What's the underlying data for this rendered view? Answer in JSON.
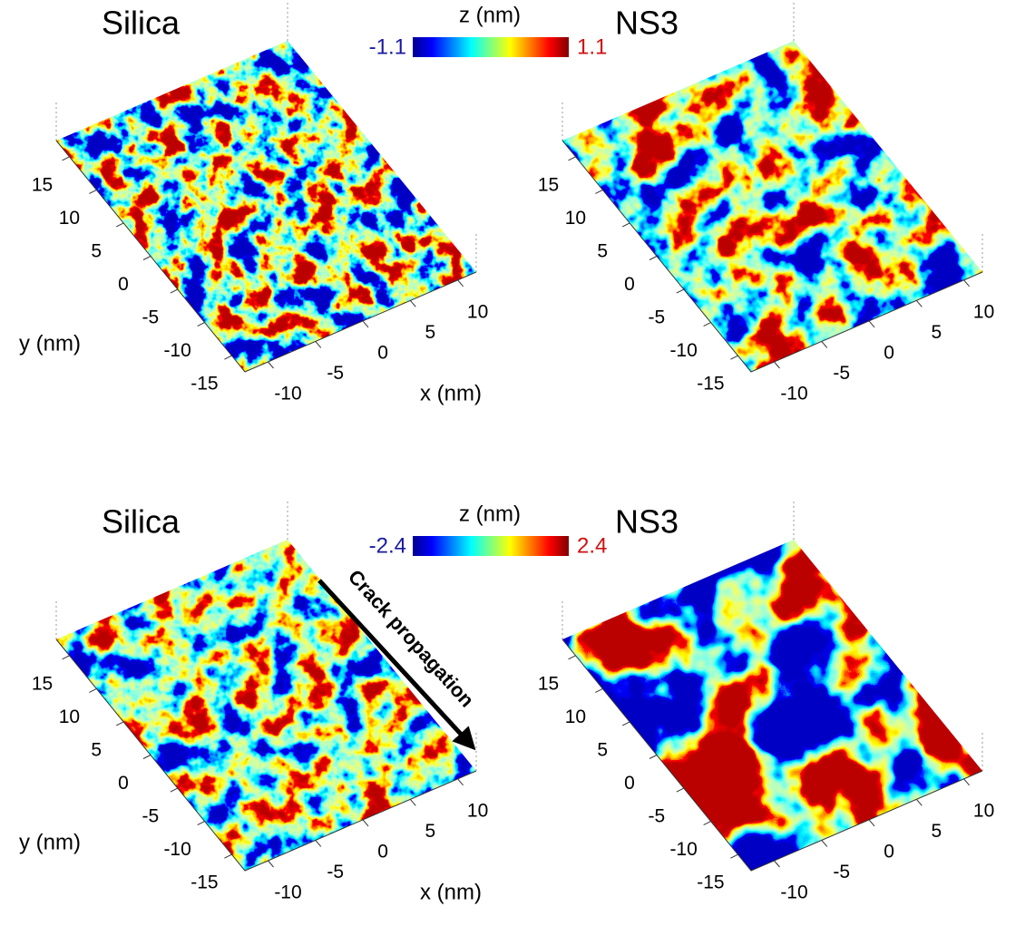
{
  "colorbars": [
    {
      "label": "z (nm)",
      "min": -1.1,
      "max": 1.1
    },
    {
      "label": "z (nm)",
      "min": -2.4,
      "max": 2.4
    }
  ],
  "panels": [
    {
      "title": "Silica",
      "y_label": "y (nm)",
      "x_label": "x (nm)",
      "yticks": [
        15,
        10,
        5,
        0,
        -5,
        -10,
        -15
      ],
      "xticks": [
        -10,
        -5,
        0,
        5,
        10
      ]
    },
    {
      "title": "NS3",
      "yticks": [
        15,
        10,
        5,
        0,
        -5,
        -10,
        -15
      ],
      "xticks": [
        -10,
        -5,
        0,
        5,
        10
      ]
    },
    {
      "title": "Silica",
      "y_label": "y (nm)",
      "x_label": "x (nm)",
      "yticks": [
        15,
        10,
        5,
        0,
        -5,
        -10,
        -15
      ],
      "xticks": [
        -10,
        -5,
        0,
        5,
        10
      ]
    },
    {
      "title": "NS3",
      "yticks": [
        15,
        10,
        5,
        0,
        -5,
        -10,
        -15
      ],
      "xticks": [
        -10,
        -5,
        0,
        5,
        10
      ]
    }
  ],
  "annotation": "Crack propagation"
}
